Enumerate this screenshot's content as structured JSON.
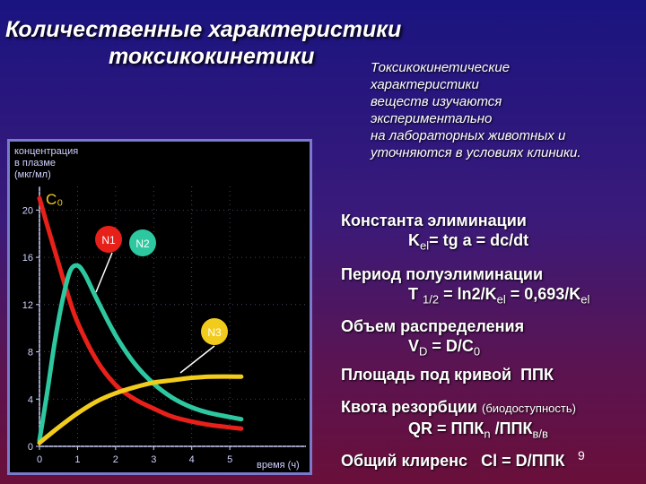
{
  "title": {
    "line1": "Количественные характеристики",
    "line2": "токсикокинетики"
  },
  "note": [
    "Токсикокинетические",
    "характеристики",
    "веществ изучаются",
    "экспериментально",
    "на лабораторных животных и",
    "уточняются в условиях клиники."
  ],
  "chart_data": {
    "type": "line",
    "ylabel": [
      "концентрация",
      "в плазме",
      "(мкг/мл)"
    ],
    "xlabel": "время (ч)",
    "x_ticks": [
      "0",
      "1",
      "2",
      "3",
      "4",
      "5"
    ],
    "y_ticks": [
      "0",
      "4",
      "8",
      "12",
      "16",
      "20"
    ],
    "xlim": [
      0,
      7
    ],
    "ylim": [
      0,
      22
    ],
    "annotations": {
      "c0": "C₀",
      "n1": "N1",
      "n2": "N2",
      "n3": "N3"
    },
    "colors": {
      "red": "#e8201a",
      "teal": "#2ec8a0",
      "yellow": "#f2cc1c",
      "axis": "#cfd2ff"
    },
    "series": [
      {
        "color": "red",
        "x": [
          0,
          0.25,
          0.5,
          0.75,
          1,
          1.5,
          2,
          2.5,
          3,
          3.5,
          4,
          4.5,
          5.3
        ],
        "y": [
          21,
          18.2,
          15.5,
          12.8,
          10.5,
          7.3,
          5.2,
          4.0,
          3.2,
          2.5,
          2.1,
          1.8,
          1.5
        ]
      },
      {
        "color": "teal",
        "x": [
          0,
          0.2,
          0.4,
          0.6,
          0.8,
          1.0,
          1.2,
          1.5,
          2,
          2.5,
          3,
          3.5,
          4,
          4.5,
          5.3
        ],
        "y": [
          0.5,
          4.5,
          8.8,
          12.3,
          14.8,
          15.3,
          14.5,
          12.5,
          9.4,
          7.0,
          5.3,
          4.1,
          3.3,
          2.8,
          2.3
        ]
      },
      {
        "color": "yellow",
        "x": [
          0,
          0.5,
          1,
          1.5,
          2,
          2.5,
          3,
          3.5,
          4,
          4.5,
          5.3
        ],
        "y": [
          0.3,
          1.6,
          2.8,
          3.8,
          4.5,
          5.0,
          5.4,
          5.6,
          5.8,
          5.9,
          5.9
        ]
      }
    ]
  },
  "params": {
    "kel": {
      "label": "Константа элиминации",
      "formula": "K",
      "sub": "el",
      "rest": "= tg a = dc/dt"
    },
    "half": {
      "label": "Период полуэлиминации",
      "t": "T ",
      "tsub": "1/2",
      "mid": " = ln2/K",
      "sub": "el",
      "rest": " = 0,693/K",
      "sub2": "el"
    },
    "vd": {
      "label": "Объем распределения",
      "v": "V",
      "vsub": "D",
      "rest": " = D/C",
      "csub": "0"
    },
    "auc": {
      "label": "Площадь под кривой",
      "abbr": "ППК"
    },
    "qr": {
      "label": "Квота резорбции",
      "paren": "(биодоступность)",
      "f1": "QR = ППК",
      "f1sub": "n",
      "f2": " /ППК",
      "f2sub": "в/в"
    },
    "cl": {
      "label": "Общий клиренс",
      "formula": "Cl = D/ППК"
    }
  },
  "page_number": "9"
}
